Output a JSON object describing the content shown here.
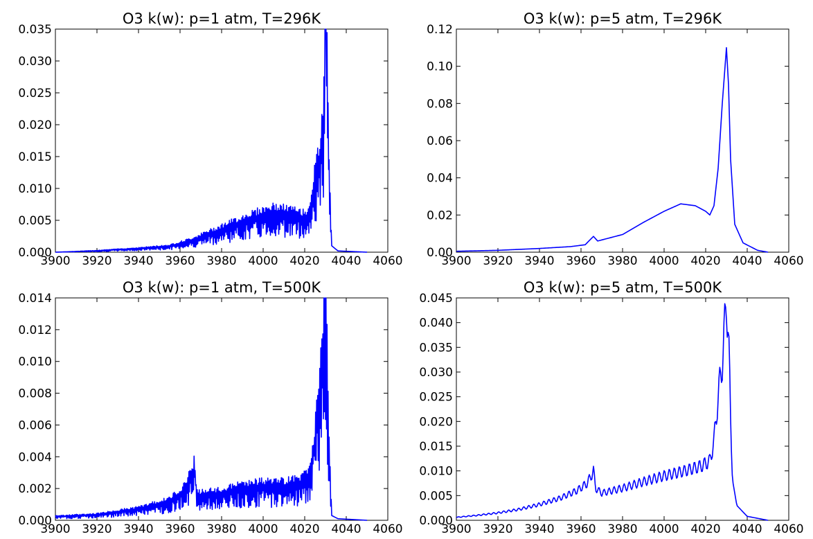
{
  "chart_data": [
    {
      "type": "line",
      "title": "O3 k(w): p=1 atm, T=296K",
      "xlabel": "",
      "ylabel": "",
      "xlim": [
        3900,
        4060
      ],
      "ylim": [
        0,
        0.035
      ],
      "xticks": [
        "3900",
        "3920",
        "3940",
        "3960",
        "3980",
        "4000",
        "4020",
        "4040",
        "4060"
      ],
      "yticks": [
        "0.000",
        "0.005",
        "0.010",
        "0.015",
        "0.020",
        "0.025",
        "0.030",
        "0.035"
      ],
      "grid": false,
      "color": "#0000ff",
      "series": [
        {
          "style": "noisy",
          "points": [
            [
              3900,
              0.0
            ],
            [
              3920,
              0.0002
            ],
            [
              3940,
              0.0005
            ],
            [
              3955,
              0.0008
            ],
            [
              3965,
              0.0015
            ],
            [
              3975,
              0.0025
            ],
            [
              3985,
              0.0035
            ],
            [
              3995,
              0.0045
            ],
            [
              4005,
              0.0052
            ],
            [
              4012,
              0.005
            ],
            [
              4020,
              0.0045
            ],
            [
              4022,
              0.005
            ],
            [
              4025,
              0.0095
            ],
            [
              4027,
              0.012
            ],
            [
              4029,
              0.016
            ],
            [
              4030,
              0.033
            ],
            [
              4031,
              0.022
            ],
            [
              4032,
              0.008
            ],
            [
              4033,
              0.001
            ],
            [
              4036,
              0.0002
            ],
            [
              4050,
              0.0
            ]
          ]
        }
      ]
    },
    {
      "type": "line",
      "title": "O3 k(w): p=5 atm, T=296K",
      "xlabel": "",
      "ylabel": "",
      "xlim": [
        3900,
        4060
      ],
      "ylim": [
        0,
        0.12
      ],
      "xticks": [
        "3900",
        "3920",
        "3940",
        "3960",
        "3980",
        "4000",
        "4020",
        "4040",
        "4060"
      ],
      "yticks": [
        "0.00",
        "0.02",
        "0.04",
        "0.06",
        "0.08",
        "0.10",
        "0.12"
      ],
      "grid": false,
      "color": "#0000ff",
      "series": [
        {
          "style": "smooth",
          "points": [
            [
              3900,
              0.0005
            ],
            [
              3920,
              0.001
            ],
            [
              3940,
              0.002
            ],
            [
              3955,
              0.003
            ],
            [
              3962,
              0.004
            ],
            [
              3966,
              0.0085
            ],
            [
              3968,
              0.006
            ],
            [
              3980,
              0.0095
            ],
            [
              3990,
              0.016
            ],
            [
              4000,
              0.022
            ],
            [
              4008,
              0.026
            ],
            [
              4015,
              0.025
            ],
            [
              4020,
              0.022
            ],
            [
              4022,
              0.02
            ],
            [
              4024,
              0.025
            ],
            [
              4026,
              0.045
            ],
            [
              4028,
              0.08
            ],
            [
              4030,
              0.11
            ],
            [
              4031,
              0.09
            ],
            [
              4032,
              0.05
            ],
            [
              4034,
              0.015
            ],
            [
              4038,
              0.005
            ],
            [
              4045,
              0.001
            ],
            [
              4050,
              0.0
            ]
          ]
        }
      ]
    },
    {
      "type": "line",
      "title": "O3 k(w): p=1 atm, T=500K",
      "xlabel": "",
      "ylabel": "",
      "xlim": [
        3900,
        4060
      ],
      "ylim": [
        0,
        0.014
      ],
      "xticks": [
        "3900",
        "3920",
        "3940",
        "3960",
        "3980",
        "4000",
        "4020",
        "4040",
        "4060"
      ],
      "yticks": [
        "0.000",
        "0.002",
        "0.004",
        "0.006",
        "0.008",
        "0.010",
        "0.012",
        "0.014"
      ],
      "grid": false,
      "color": "#0000ff",
      "series": [
        {
          "style": "noisy",
          "points": [
            [
              3900,
              0.0002
            ],
            [
              3920,
              0.0003
            ],
            [
              3940,
              0.0006
            ],
            [
              3955,
              0.001
            ],
            [
              3962,
              0.0016
            ],
            [
              3966,
              0.0025
            ],
            [
              3967,
              0.0029
            ],
            [
              3968,
              0.0013
            ],
            [
              3980,
              0.0014
            ],
            [
              3990,
              0.0017
            ],
            [
              4000,
              0.0018
            ],
            [
              4010,
              0.0018
            ],
            [
              4018,
              0.002
            ],
            [
              4022,
              0.0022
            ],
            [
              4024,
              0.0035
            ],
            [
              4026,
              0.0055
            ],
            [
              4028,
              0.0075
            ],
            [
              4030,
              0.0125
            ],
            [
              4031,
              0.007
            ],
            [
              4032,
              0.003
            ],
            [
              4033,
              0.0003
            ],
            [
              4036,
              0.0001
            ],
            [
              4050,
              0.0
            ]
          ]
        }
      ]
    },
    {
      "type": "line",
      "title": "O3 k(w): p=5 atm, T=500K",
      "xlabel": "",
      "ylabel": "",
      "xlim": [
        3900,
        4060
      ],
      "ylim": [
        0,
        0.045
      ],
      "xticks": [
        "3900",
        "3920",
        "3940",
        "3960",
        "3980",
        "4000",
        "4020",
        "4040",
        "4060"
      ],
      "yticks": [
        "0.000",
        "0.005",
        "0.010",
        "0.015",
        "0.020",
        "0.025",
        "0.030",
        "0.035",
        "0.040",
        "0.045"
      ],
      "grid": false,
      "color": "#0000ff",
      "series": [
        {
          "style": "wavy",
          "points": [
            [
              3900,
              0.0006
            ],
            [
              3910,
              0.001
            ],
            [
              3920,
              0.0015
            ],
            [
              3930,
              0.0022
            ],
            [
              3940,
              0.0032
            ],
            [
              3950,
              0.0045
            ],
            [
              3958,
              0.006
            ],
            [
              3963,
              0.0075
            ],
            [
              3966,
              0.01
            ],
            [
              3967,
              0.0065
            ],
            [
              3970,
              0.0055
            ],
            [
              3980,
              0.0065
            ],
            [
              3990,
              0.0078
            ],
            [
              4000,
              0.009
            ],
            [
              4010,
              0.01
            ],
            [
              4018,
              0.011
            ],
            [
              4022,
              0.012
            ],
            [
              4024,
              0.016
            ],
            [
              4026,
              0.025
            ],
            [
              4028,
              0.032
            ],
            [
              4029,
              0.038
            ],
            [
              4030,
              0.0445
            ],
            [
              4031,
              0.038
            ],
            [
              4032,
              0.02
            ],
            [
              4033,
              0.008
            ],
            [
              4035,
              0.003
            ],
            [
              4040,
              0.0008
            ],
            [
              4050,
              0.0
            ]
          ]
        }
      ]
    }
  ]
}
